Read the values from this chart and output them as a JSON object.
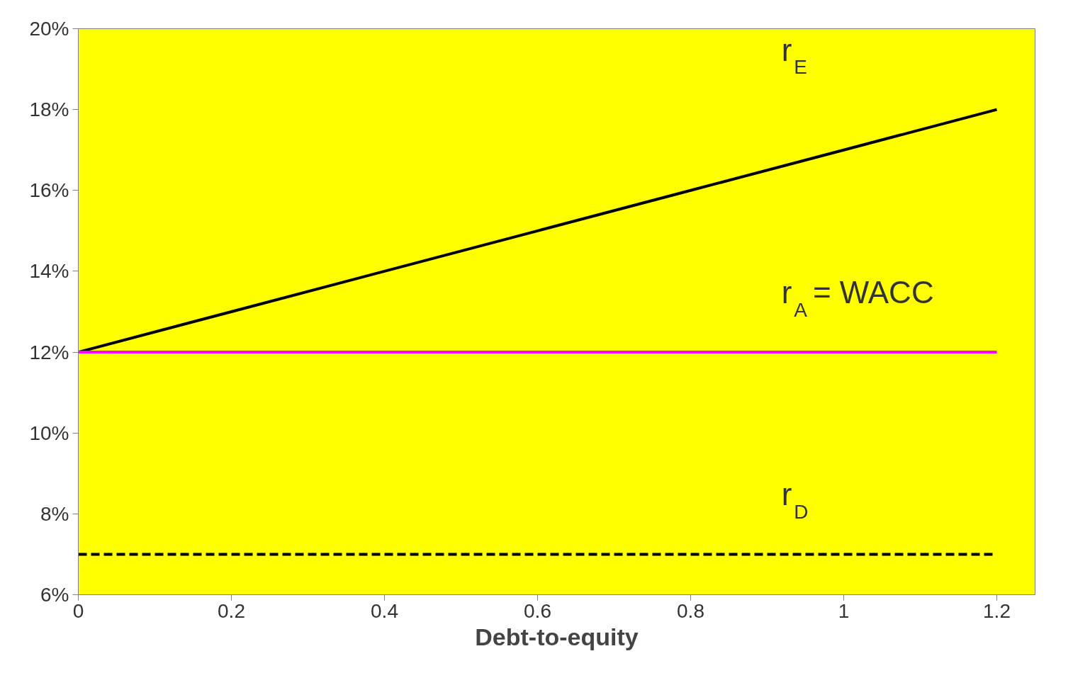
{
  "chart_data": {
    "type": "line",
    "xlabel": "Debt-to-equity",
    "x": [
      0,
      0.2,
      0.4,
      0.6,
      0.8,
      1,
      1.2
    ],
    "series": [
      {
        "name": "r$_{E}$",
        "color": "#000000",
        "values": [
          12,
          13,
          14,
          15,
          16,
          17,
          18
        ]
      },
      {
        "name": "r$_{A}$ = WACC",
        "color": "#ff00ff",
        "values": [
          12,
          12,
          12,
          12,
          12,
          12,
          12
        ]
      },
      {
        "name": "r$_{D}$",
        "color": "#000000",
        "line_style": "dashed",
        "values": [
          7,
          7,
          7,
          7,
          7,
          7,
          7
        ]
      }
    ],
    "xlim": [
      0,
      1.25
    ],
    "ylim": [
      6,
      20
    ],
    "xticks": [
      0,
      0.2,
      0.4,
      0.6,
      0.8,
      1,
      1.2
    ],
    "yticks": [
      {
        "value": 6,
        "label": "6%"
      },
      {
        "value": 8,
        "label": "8%"
      },
      {
        "value": 10,
        "label": "10%"
      },
      {
        "value": 12,
        "label": "12%"
      },
      {
        "value": 14,
        "label": "14%"
      },
      {
        "value": 16,
        "label": "16%"
      },
      {
        "value": 18,
        "label": "18%"
      },
      {
        "value": 20,
        "label": "20%"
      }
    ],
    "grid": false,
    "marker": "none"
  }
}
